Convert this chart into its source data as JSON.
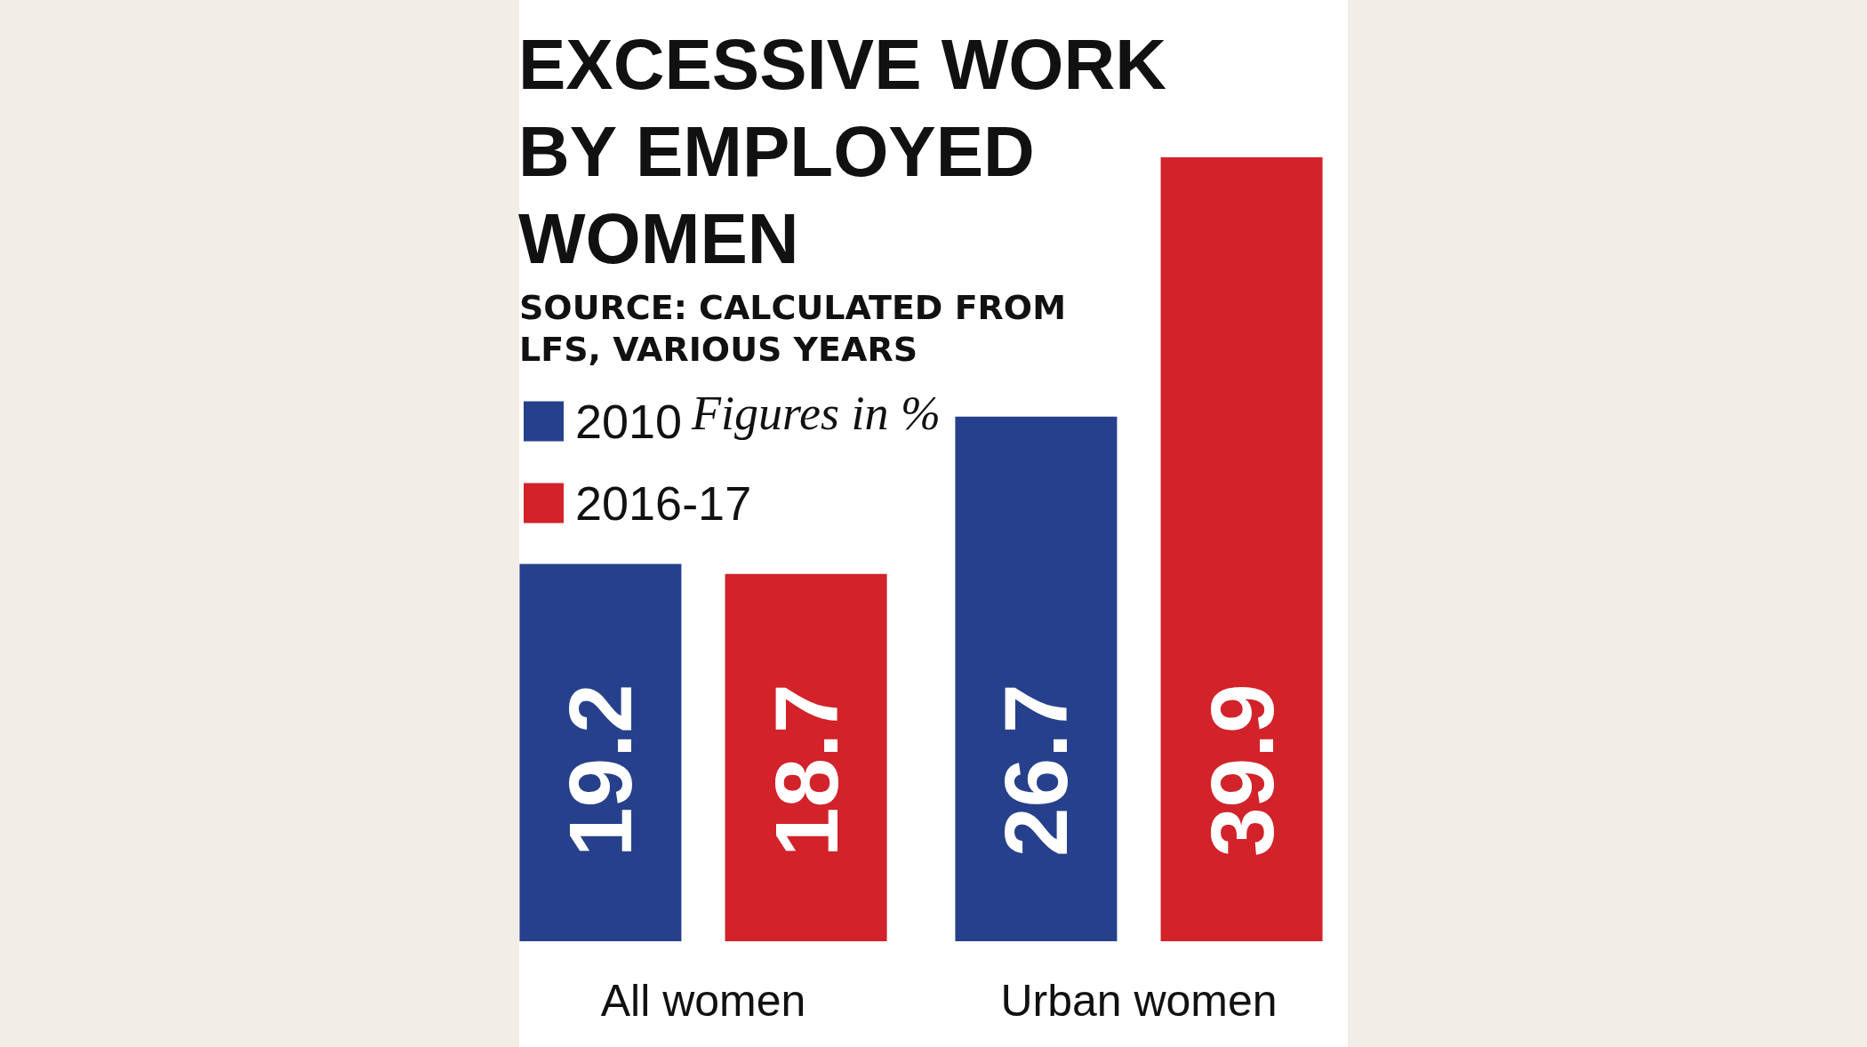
{
  "chart_data": {
    "type": "bar",
    "title": "EXCESSIVE WORK\nBY EMPLOYED\nWOMEN",
    "annotations": [
      "SOURCE: CALCULATED FROM\nLFS, VARIOUS YEARS",
      "Figures in %"
    ],
    "categories": [
      "All women",
      "Urban women"
    ],
    "series": [
      {
        "name": "2010",
        "color": "#26408b",
        "values": [
          19.2,
          26.7
        ]
      },
      {
        "name": "2016-17",
        "color": "#d2222a",
        "values": [
          18.7,
          39.9
        ]
      }
    ],
    "data_labels": true,
    "legend": "top left"
  }
}
